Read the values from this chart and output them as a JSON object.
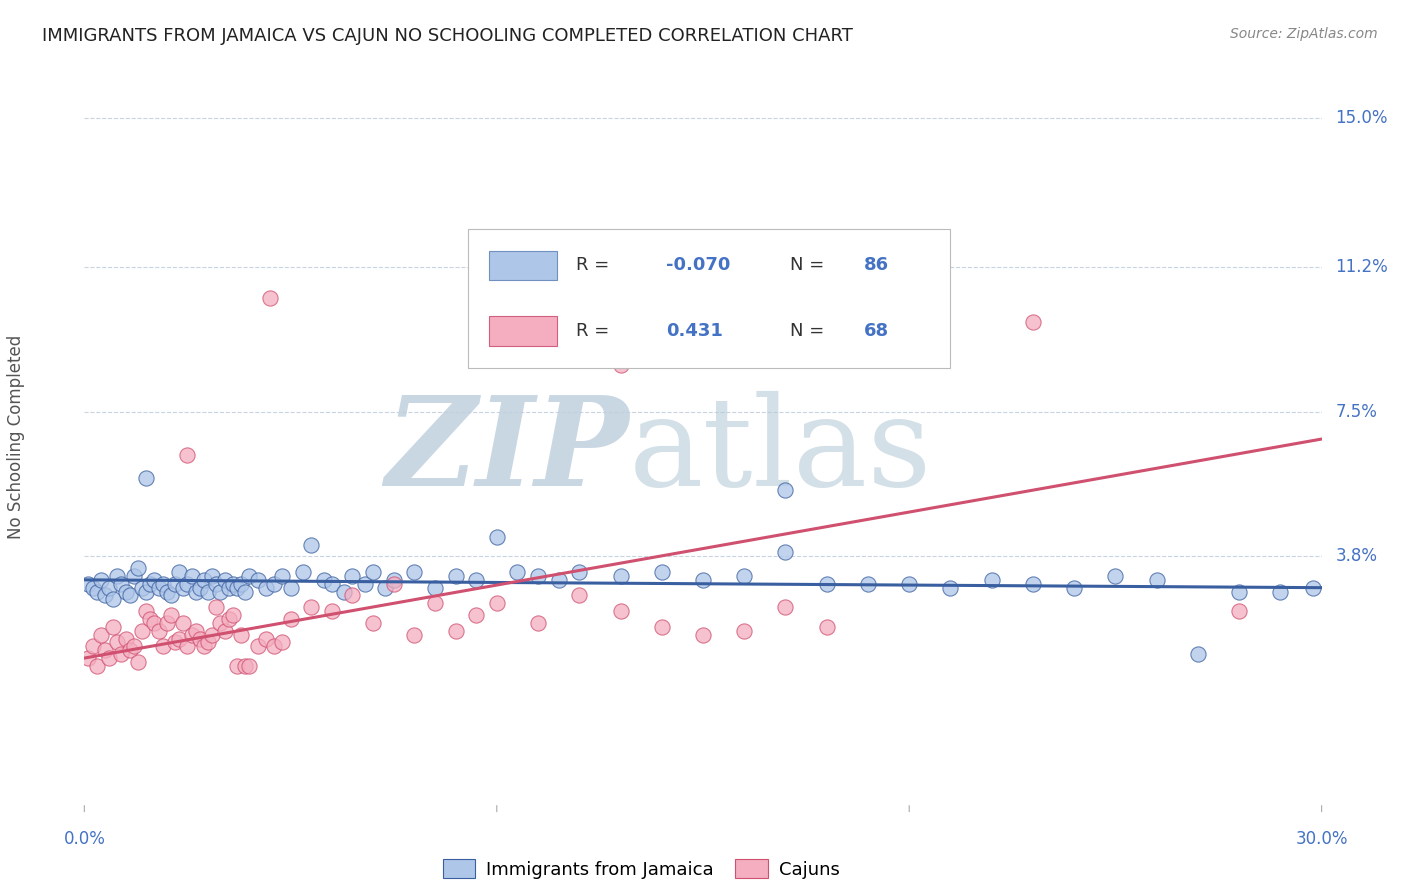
{
  "title": "IMMIGRANTS FROM JAMAICA VS CAJUN NO SCHOOLING COMPLETED CORRELATION CHART",
  "source": "Source: ZipAtlas.com",
  "ylabel": "No Schooling Completed",
  "ytick_labels": [
    "15.0%",
    "11.2%",
    "7.5%",
    "3.8%"
  ],
  "ytick_values": [
    0.15,
    0.112,
    0.075,
    0.038
  ],
  "xmin": 0.0,
  "xmax": 0.3,
  "ymin": -0.025,
  "ymax": 0.162,
  "legend_bottom": [
    "Immigrants from Jamaica",
    "Cajuns"
  ],
  "series1_color": "#aec6e8",
  "series2_color": "#f4aec0",
  "line1_color": "#3a5fa0",
  "line2_color": "#d05070",
  "watermark_zip_color": "#c8d8e8",
  "watermark_atlas_color": "#b8ccd8",
  "background_color": "#ffffff",
  "grid_color": "#c8d4e0",
  "title_color": "#222222",
  "axis_label_color": "#4472c4",
  "scatter1": [
    [
      0.001,
      0.031
    ],
    [
      0.002,
      0.03
    ],
    [
      0.003,
      0.029
    ],
    [
      0.004,
      0.032
    ],
    [
      0.005,
      0.028
    ],
    [
      0.006,
      0.03
    ],
    [
      0.007,
      0.027
    ],
    [
      0.008,
      0.033
    ],
    [
      0.009,
      0.031
    ],
    [
      0.01,
      0.029
    ],
    [
      0.011,
      0.028
    ],
    [
      0.012,
      0.033
    ],
    [
      0.013,
      0.035
    ],
    [
      0.014,
      0.03
    ],
    [
      0.015,
      0.029
    ],
    [
      0.016,
      0.031
    ],
    [
      0.017,
      0.032
    ],
    [
      0.018,
      0.03
    ],
    [
      0.019,
      0.031
    ],
    [
      0.02,
      0.029
    ],
    [
      0.021,
      0.028
    ],
    [
      0.022,
      0.031
    ],
    [
      0.023,
      0.034
    ],
    [
      0.024,
      0.03
    ],
    [
      0.025,
      0.031
    ],
    [
      0.026,
      0.033
    ],
    [
      0.027,
      0.029
    ],
    [
      0.028,
      0.03
    ],
    [
      0.029,
      0.032
    ],
    [
      0.03,
      0.029
    ],
    [
      0.031,
      0.033
    ],
    [
      0.032,
      0.031
    ],
    [
      0.033,
      0.029
    ],
    [
      0.034,
      0.032
    ],
    [
      0.035,
      0.03
    ],
    [
      0.036,
      0.031
    ],
    [
      0.037,
      0.03
    ],
    [
      0.038,
      0.031
    ],
    [
      0.039,
      0.029
    ],
    [
      0.04,
      0.033
    ],
    [
      0.042,
      0.032
    ],
    [
      0.044,
      0.03
    ],
    [
      0.046,
      0.031
    ],
    [
      0.048,
      0.033
    ],
    [
      0.05,
      0.03
    ],
    [
      0.053,
      0.034
    ],
    [
      0.055,
      0.041
    ],
    [
      0.058,
      0.032
    ],
    [
      0.06,
      0.031
    ],
    [
      0.063,
      0.029
    ],
    [
      0.065,
      0.033
    ],
    [
      0.068,
      0.031
    ],
    [
      0.07,
      0.034
    ],
    [
      0.073,
      0.03
    ],
    [
      0.075,
      0.032
    ],
    [
      0.08,
      0.034
    ],
    [
      0.085,
      0.03
    ],
    [
      0.09,
      0.033
    ],
    [
      0.095,
      0.032
    ],
    [
      0.1,
      0.043
    ],
    [
      0.105,
      0.034
    ],
    [
      0.11,
      0.033
    ],
    [
      0.115,
      0.032
    ],
    [
      0.12,
      0.034
    ],
    [
      0.13,
      0.033
    ],
    [
      0.14,
      0.034
    ],
    [
      0.15,
      0.032
    ],
    [
      0.16,
      0.033
    ],
    [
      0.17,
      0.039
    ],
    [
      0.18,
      0.031
    ],
    [
      0.19,
      0.031
    ],
    [
      0.2,
      0.031
    ],
    [
      0.21,
      0.03
    ],
    [
      0.22,
      0.032
    ],
    [
      0.23,
      0.031
    ],
    [
      0.24,
      0.03
    ],
    [
      0.25,
      0.033
    ],
    [
      0.26,
      0.032
    ],
    [
      0.27,
      0.013
    ],
    [
      0.28,
      0.029
    ],
    [
      0.29,
      0.029
    ],
    [
      0.298,
      0.03
    ],
    [
      0.17,
      0.055
    ],
    [
      0.015,
      0.058
    ]
  ],
  "scatter2": [
    [
      0.001,
      0.012
    ],
    [
      0.002,
      0.015
    ],
    [
      0.003,
      0.01
    ],
    [
      0.004,
      0.018
    ],
    [
      0.005,
      0.014
    ],
    [
      0.006,
      0.012
    ],
    [
      0.007,
      0.02
    ],
    [
      0.008,
      0.016
    ],
    [
      0.009,
      0.013
    ],
    [
      0.01,
      0.017
    ],
    [
      0.011,
      0.014
    ],
    [
      0.012,
      0.015
    ],
    [
      0.013,
      0.011
    ],
    [
      0.014,
      0.019
    ],
    [
      0.015,
      0.024
    ],
    [
      0.016,
      0.022
    ],
    [
      0.017,
      0.021
    ],
    [
      0.018,
      0.019
    ],
    [
      0.019,
      0.015
    ],
    [
      0.02,
      0.021
    ],
    [
      0.021,
      0.023
    ],
    [
      0.022,
      0.016
    ],
    [
      0.023,
      0.017
    ],
    [
      0.024,
      0.021
    ],
    [
      0.025,
      0.015
    ],
    [
      0.026,
      0.018
    ],
    [
      0.027,
      0.019
    ],
    [
      0.028,
      0.017
    ],
    [
      0.029,
      0.015
    ],
    [
      0.03,
      0.016
    ],
    [
      0.031,
      0.018
    ],
    [
      0.032,
      0.025
    ],
    [
      0.033,
      0.021
    ],
    [
      0.034,
      0.019
    ],
    [
      0.035,
      0.022
    ],
    [
      0.036,
      0.023
    ],
    [
      0.037,
      0.01
    ],
    [
      0.038,
      0.018
    ],
    [
      0.039,
      0.01
    ],
    [
      0.04,
      0.01
    ],
    [
      0.042,
      0.015
    ],
    [
      0.044,
      0.017
    ],
    [
      0.046,
      0.015
    ],
    [
      0.048,
      0.016
    ],
    [
      0.05,
      0.022
    ],
    [
      0.055,
      0.025
    ],
    [
      0.06,
      0.024
    ],
    [
      0.065,
      0.028
    ],
    [
      0.07,
      0.021
    ],
    [
      0.075,
      0.031
    ],
    [
      0.08,
      0.018
    ],
    [
      0.085,
      0.026
    ],
    [
      0.09,
      0.019
    ],
    [
      0.095,
      0.023
    ],
    [
      0.1,
      0.026
    ],
    [
      0.11,
      0.021
    ],
    [
      0.12,
      0.028
    ],
    [
      0.13,
      0.024
    ],
    [
      0.14,
      0.02
    ],
    [
      0.15,
      0.018
    ],
    [
      0.16,
      0.019
    ],
    [
      0.17,
      0.025
    ],
    [
      0.18,
      0.02
    ],
    [
      0.28,
      0.024
    ],
    [
      0.025,
      0.064
    ],
    [
      0.045,
      0.104
    ],
    [
      0.13,
      0.087
    ],
    [
      0.23,
      0.098
    ]
  ],
  "line1_x": [
    0.0,
    0.3
  ],
  "line1_y": [
    0.032,
    0.03
  ],
  "line2_x": [
    0.0,
    0.3
  ],
  "line2_y": [
    0.012,
    0.068
  ]
}
